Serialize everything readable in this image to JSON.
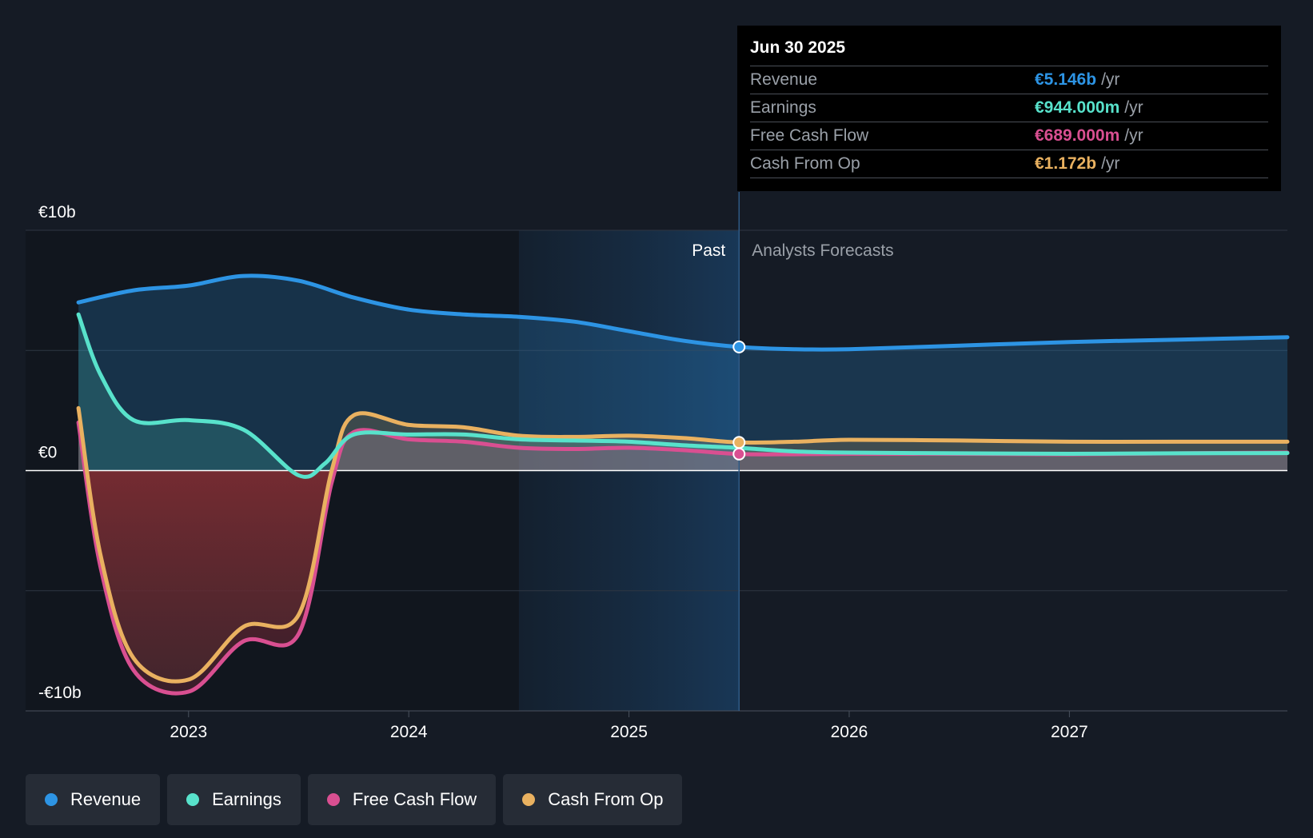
{
  "chart_data": {
    "type": "area",
    "currency": "€",
    "y_axis": {
      "ticks": [
        {
          "value": 10,
          "label": "€10b"
        },
        {
          "value": 0,
          "label": "€0"
        },
        {
          "value": -10,
          "label": "-€10b"
        }
      ],
      "ylim": [
        -10,
        10
      ],
      "unit": "billion EUR"
    },
    "x_axis": {
      "ticks": [
        {
          "value": 2023,
          "label": "2023"
        },
        {
          "value": 2024,
          "label": "2024"
        },
        {
          "value": 2025,
          "label": "2025"
        },
        {
          "value": 2026,
          "label": "2026"
        },
        {
          "value": 2027,
          "label": "2027"
        }
      ],
      "xlim": [
        2022.26,
        2027.99
      ]
    },
    "past_label": "Past",
    "forecast_label": "Analysts Forecasts",
    "divider_x": 2025.5,
    "highlight_start_x": 2024.5,
    "series": [
      {
        "key": "revenue",
        "name": "Revenue",
        "color": "#2d94e4",
        "x": [
          2022.5,
          2022.75,
          2023.0,
          2023.25,
          2023.5,
          2023.75,
          2024.0,
          2024.25,
          2024.5,
          2024.75,
          2025.0,
          2025.25,
          2025.5,
          2025.75,
          2026.0,
          2026.5,
          2027.0,
          2027.5,
          2027.99
        ],
        "values": [
          7.0,
          7.5,
          7.7,
          8.1,
          7.9,
          7.2,
          6.7,
          6.5,
          6.4,
          6.2,
          5.8,
          5.4,
          5.146,
          5.05,
          5.05,
          5.2,
          5.35,
          5.45,
          5.55
        ]
      },
      {
        "key": "earnings",
        "name": "Earnings",
        "color": "#58e2cb",
        "x": [
          2022.5,
          2022.6,
          2022.75,
          2023.0,
          2023.25,
          2023.5,
          2023.62,
          2023.75,
          2024.0,
          2024.25,
          2024.5,
          2024.75,
          2025.0,
          2025.25,
          2025.5,
          2025.75,
          2026.0,
          2026.5,
          2027.0,
          2027.5,
          2027.99
        ],
        "values": [
          6.5,
          4.0,
          2.1,
          2.1,
          1.7,
          -0.2,
          0.3,
          1.5,
          1.5,
          1.5,
          1.3,
          1.25,
          1.2,
          1.05,
          0.944,
          0.8,
          0.75,
          0.72,
          0.7,
          0.72,
          0.73
        ]
      },
      {
        "key": "fcf",
        "name": "Free Cash Flow",
        "color": "#d94f91",
        "x": [
          2022.5,
          2022.6,
          2022.75,
          2023.0,
          2023.25,
          2023.5,
          2023.65,
          2023.75,
          2024.0,
          2024.25,
          2024.5,
          2024.75,
          2025.0,
          2025.25,
          2025.5,
          2025.75,
          2026.0,
          2026.5,
          2027.0,
          2027.5,
          2027.99
        ],
        "values": [
          2.0,
          -4.0,
          -8.3,
          -9.2,
          -7.1,
          -6.8,
          -0.5,
          1.6,
          1.3,
          1.2,
          0.95,
          0.9,
          0.95,
          0.85,
          0.689,
          0.68,
          0.7,
          0.7,
          0.68,
          0.72,
          0.75
        ]
      },
      {
        "key": "cfo",
        "name": "Cash From Op",
        "color": "#e9b160",
        "x": [
          2022.5,
          2022.6,
          2022.75,
          2023.0,
          2023.25,
          2023.5,
          2023.65,
          2023.75,
          2024.0,
          2024.25,
          2024.5,
          2024.75,
          2025.0,
          2025.25,
          2025.5,
          2025.75,
          2026.0,
          2026.5,
          2027.0,
          2027.5,
          2027.99
        ],
        "values": [
          2.6,
          -3.5,
          -7.8,
          -8.7,
          -6.5,
          -6.0,
          0.0,
          2.3,
          1.9,
          1.8,
          1.45,
          1.4,
          1.45,
          1.35,
          1.172,
          1.2,
          1.28,
          1.25,
          1.2,
          1.2,
          1.2
        ]
      }
    ],
    "highlight_points": [
      {
        "series": "revenue",
        "x": 2025.5,
        "value": 5.146
      },
      {
        "series": "cfo",
        "x": 2025.5,
        "value": 1.172
      },
      {
        "series": "fcf",
        "x": 2025.5,
        "value": 0.689
      }
    ],
    "area_opacity": 0.35
  },
  "tooltip": {
    "date": "Jun 30 2025",
    "unit": "/yr",
    "rows": [
      {
        "label": "Revenue",
        "value": "€5.146b",
        "color": "#2d94e4"
      },
      {
        "label": "Earnings",
        "value": "€944.000m",
        "color": "#58e2cb"
      },
      {
        "label": "Free Cash Flow",
        "value": "€689.000m",
        "color": "#d94f91"
      },
      {
        "label": "Cash From Op",
        "value": "€1.172b",
        "color": "#e9b160"
      }
    ]
  },
  "legend": {
    "items": [
      {
        "label": "Revenue",
        "color": "#2d94e4"
      },
      {
        "label": "Earnings",
        "color": "#58e2cb"
      },
      {
        "label": "Free Cash Flow",
        "color": "#d94f91"
      },
      {
        "label": "Cash From Op",
        "color": "#e9b160"
      }
    ]
  }
}
